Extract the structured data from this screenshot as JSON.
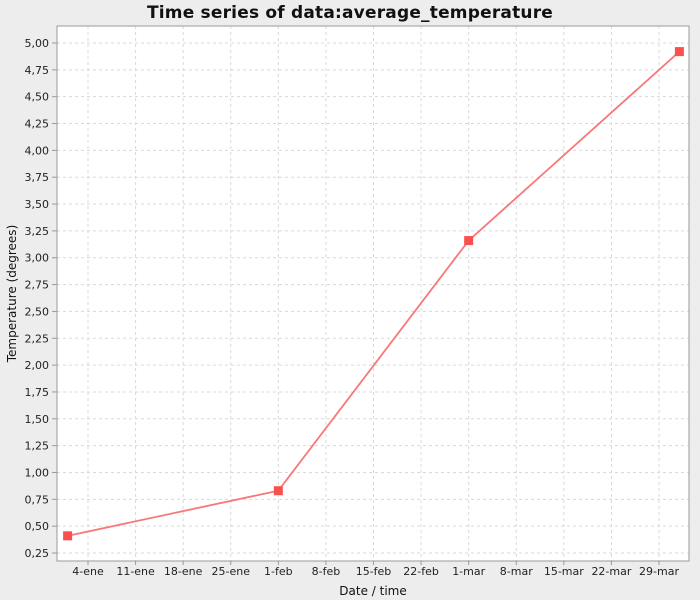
{
  "page": {
    "title": "Time series of data:average_temperature"
  },
  "chart_data": {
    "type": "line",
    "title": "Time series of data:average_temperature",
    "xlabel": "Date / time",
    "ylabel": "Temperature (degrees)",
    "legend": "none",
    "grid": {
      "style": "dashed",
      "color": "#d9d9d9"
    },
    "plot_background": "#ffffff",
    "outer_background": "#ededed",
    "border_color": "#9a9a9a",
    "tick_text_color": "#222222",
    "x_ticks": [
      {
        "label": "4-ene",
        "day": 4
      },
      {
        "label": "11-ene",
        "day": 11
      },
      {
        "label": "18-ene",
        "day": 18
      },
      {
        "label": "25-ene",
        "day": 25
      },
      {
        "label": "1-feb",
        "day": 32
      },
      {
        "label": "8-feb",
        "day": 39
      },
      {
        "label": "15-feb",
        "day": 46
      },
      {
        "label": "22-feb",
        "day": 53
      },
      {
        "label": "1-mar",
        "day": 60
      },
      {
        "label": "8-mar",
        "day": 67
      },
      {
        "label": "15-mar",
        "day": 74
      },
      {
        "label": "22-mar",
        "day": 81
      },
      {
        "label": "29-mar",
        "day": 88
      }
    ],
    "y_ticks": [
      {
        "label": "5,00",
        "value": 5.0
      },
      {
        "label": "4,75",
        "value": 4.75
      },
      {
        "label": "4,50",
        "value": 4.5
      },
      {
        "label": "4,25",
        "value": 4.25
      },
      {
        "label": "4,00",
        "value": 4.0
      },
      {
        "label": "3,75",
        "value": 3.75
      },
      {
        "label": "3,50",
        "value": 3.5
      },
      {
        "label": "3,25",
        "value": 3.25
      },
      {
        "label": "3,00",
        "value": 3.0
      },
      {
        "label": "2,75",
        "value": 2.75
      },
      {
        "label": "2,50",
        "value": 2.5
      },
      {
        "label": "2,25",
        "value": 2.25
      },
      {
        "label": "2,00",
        "value": 2.0
      },
      {
        "label": "1,75",
        "value": 1.75
      },
      {
        "label": "1,50",
        "value": 1.5
      },
      {
        "label": "1,25",
        "value": 1.25
      },
      {
        "label": "1,00",
        "value": 1.0
      },
      {
        "label": "0,75",
        "value": 0.75
      },
      {
        "label": "0,50",
        "value": 0.5
      },
      {
        "label": "0,25",
        "value": 0.25
      }
    ],
    "y_domain": [
      0.17,
      5.16
    ],
    "x_domain_days": [
      -0.6,
      92.4
    ],
    "series": [
      {
        "name": "average_temperature",
        "line_color": "#f87878",
        "marker_color": "#fa5050",
        "marker": "square",
        "points": [
          {
            "x_date": "1-ene",
            "x_day": 1,
            "value": 0.41
          },
          {
            "x_date": "1-feb",
            "x_day": 32,
            "value": 0.83
          },
          {
            "x_date": "1-mar",
            "x_day": 60,
            "value": 3.16
          },
          {
            "x_date": "1-abr",
            "x_day": 91,
            "value": 4.92
          }
        ]
      }
    ]
  }
}
